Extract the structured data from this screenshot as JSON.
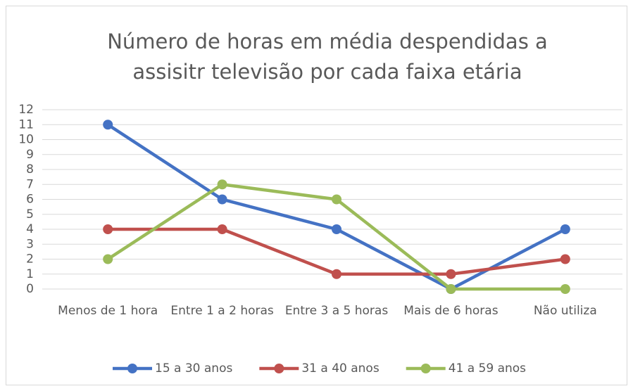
{
  "chart_data": {
    "type": "line",
    "title": "Número de horas em média despendidas a assisitr televisão por cada faixa etária",
    "categories": [
      "Menos de 1 hora",
      "Entre 1 a 2 horas",
      "Entre 3 a 5 horas",
      "Mais de 6 horas",
      "Não utiliza"
    ],
    "series": [
      {
        "name": "15 a 30 anos",
        "color": "#4472c4",
        "values": [
          11,
          6,
          4,
          0,
          4
        ]
      },
      {
        "name": "31 a 40 anos",
        "color": "#c0504d",
        "values": [
          4,
          4,
          1,
          1,
          2
        ]
      },
      {
        "name": "41 a 59 anos",
        "color": "#9bbb59",
        "values": [
          2,
          7,
          6,
          0,
          0
        ]
      }
    ],
    "ylim": [
      0,
      12
    ],
    "yticks": [
      0,
      1,
      2,
      3,
      4,
      5,
      6,
      7,
      8,
      9,
      10,
      11,
      12
    ],
    "grid": true,
    "legend": "bottom"
  }
}
